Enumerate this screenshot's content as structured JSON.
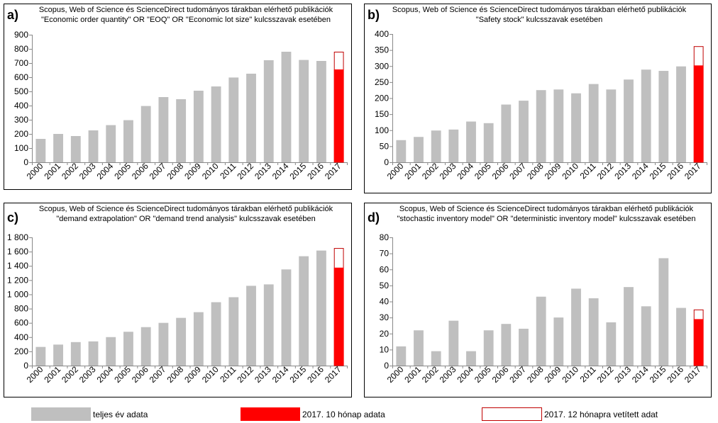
{
  "legend": {
    "full_year": "teljes év adata",
    "partial": "2017. 10 hónap adata",
    "projected": "2017. 12 hónapra vetített adat",
    "colors": {
      "full_year": "#bfbfbf",
      "partial": "#ff0000",
      "projected_outline": "#c00000"
    }
  },
  "chart_data": [
    {
      "type": "bar",
      "label": "a)",
      "title_lines": [
        "Scopus, Web of Science és ScienceDirect tudományos tárakban elérhető publikációk",
        "\"Economic order quantity\" OR \"EOQ\" OR \"Economic lot size\" kulcsszavak esetében"
      ],
      "categories": [
        "2000",
        "2001",
        "2002",
        "2003",
        "2004",
        "2005",
        "2006",
        "2007",
        "2008",
        "2009",
        "2010",
        "2011",
        "2012",
        "2013",
        "2014",
        "2015",
        "2016",
        "2017"
      ],
      "values": [
        165,
        200,
        185,
        225,
        262,
        297,
        397,
        460,
        445,
        505,
        535,
        598,
        625,
        720,
        780,
        722,
        715,
        655
      ],
      "projected_last": 780,
      "ylim": [
        0,
        900
      ],
      "yticks": [
        0,
        100,
        200,
        300,
        400,
        500,
        600,
        700,
        800,
        900
      ],
      "ytick_labels": [
        "0",
        "100",
        "200",
        "300",
        "400",
        "500",
        "600",
        "700",
        "800",
        "900"
      ]
    },
    {
      "type": "bar",
      "label": "b)",
      "title_lines": [
        "Scopus, Web of Science és ScienceDirect tudományos tárakban elérhető publikációk",
        "\"Safety stock\" kulcsszavak esetében"
      ],
      "categories": [
        "2000",
        "2001",
        "2002",
        "2003",
        "2004",
        "2005",
        "2006",
        "2007",
        "2008",
        "2009",
        "2010",
        "2011",
        "2012",
        "2013",
        "2014",
        "2015",
        "2016",
        "2017"
      ],
      "values": [
        69,
        79,
        99,
        102,
        127,
        122,
        180,
        192,
        225,
        227,
        215,
        244,
        227,
        258,
        289,
        285,
        299,
        302
      ],
      "projected_last": 362,
      "ylim": [
        0,
        400
      ],
      "yticks": [
        0,
        50,
        100,
        150,
        200,
        250,
        300,
        350,
        400
      ],
      "ytick_labels": [
        "0",
        "50",
        "100",
        "150",
        "200",
        "250",
        "300",
        "350",
        "400"
      ]
    },
    {
      "type": "bar",
      "label": "c)",
      "title_lines": [
        "Scopus, Web of Science és ScienceDirect tudományos tárakban elérhető publikációk",
        "\"demand extrapolation\" OR \"demand trend analysis\" kulcsszavak esetében"
      ],
      "categories": [
        "2000",
        "2001",
        "2002",
        "2003",
        "2004",
        "2005",
        "2006",
        "2007",
        "2008",
        "2009",
        "2010",
        "2011",
        "2012",
        "2013",
        "2014",
        "2015",
        "2016",
        "2017"
      ],
      "values": [
        262,
        295,
        330,
        340,
        400,
        475,
        540,
        600,
        670,
        750,
        890,
        960,
        1120,
        1140,
        1350,
        1535,
        1615,
        1375
      ],
      "projected_last": 1650,
      "ylim": [
        0,
        1800
      ],
      "yticks": [
        0,
        200,
        400,
        600,
        800,
        1000,
        1200,
        1400,
        1600,
        1800
      ],
      "ytick_labels": [
        "0",
        "200",
        "400",
        "600",
        "800",
        "1 000",
        "1 200",
        "1 400",
        "1 600",
        "1 800"
      ]
    },
    {
      "type": "bar",
      "label": "d)",
      "title_lines": [
        "Scopus, Web of Science és ScienceDirect tudományos tárakban elérhető publikációk",
        "\"stochastic inventory model\" OR \"deterministic inventory model\" kulcsszavak esetében"
      ],
      "categories": [
        "2000",
        "2001",
        "2002",
        "2003",
        "2004",
        "2005",
        "2006",
        "2007",
        "2008",
        "2009",
        "2010",
        "2011",
        "2012",
        "2013",
        "2014",
        "2015",
        "2016",
        "2017"
      ],
      "values": [
        12,
        22,
        9,
        28,
        9,
        22,
        26,
        23,
        43,
        30,
        48,
        42,
        27,
        49,
        37,
        67,
        36,
        29
      ],
      "projected_last": 35,
      "ylim": [
        0,
        80
      ],
      "yticks": [
        0,
        10,
        20,
        30,
        40,
        50,
        60,
        70,
        80
      ],
      "ytick_labels": [
        "0",
        "10",
        "20",
        "30",
        "40",
        "50",
        "60",
        "70",
        "80"
      ]
    }
  ]
}
